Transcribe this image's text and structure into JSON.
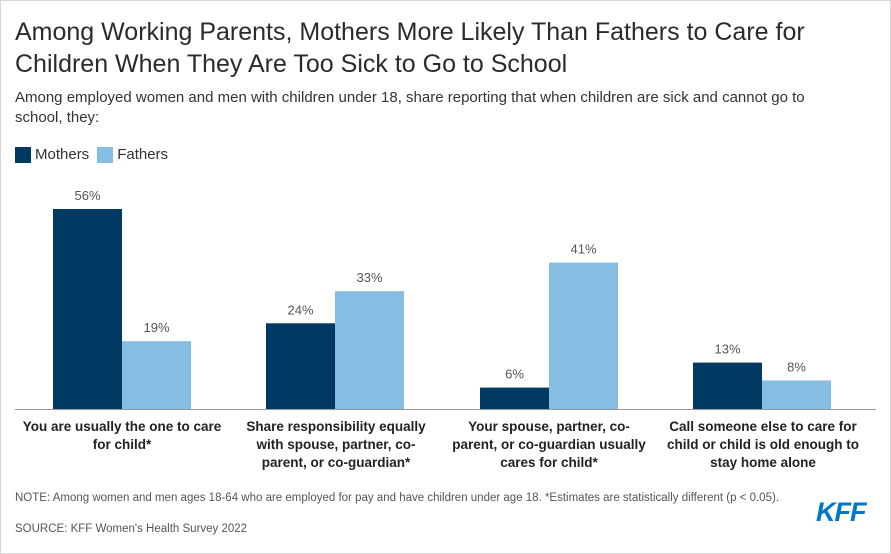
{
  "header": {
    "title": "Among Working Parents, Mothers More Likely Than Fathers to Care for Children When They Are Too Sick to Go to School",
    "subtitle": "Among employed women and men with children under 18, share reporting that when children are sick and cannot go to school, they:"
  },
  "legend": {
    "items": [
      {
        "label": "Mothers",
        "color": "#003a63"
      },
      {
        "label": "Fathers",
        "color": "#86bde3"
      }
    ]
  },
  "chart_data": {
    "type": "bar",
    "categories": [
      "You are usually the one to care for child*",
      "Share responsibility equally with spouse, partner, co-parent, or co-guardian*",
      "Your spouse, partner, co-parent, or co-guardian usually cares for child*",
      "Call someone else to care for child or child is old enough to stay home alone"
    ],
    "series": [
      {
        "name": "Mothers",
        "values": [
          56,
          24,
          6,
          13
        ],
        "labels": [
          "56%",
          "24%",
          "6%",
          "13%"
        ],
        "color": "#003a63"
      },
      {
        "name": "Fathers",
        "values": [
          19,
          33,
          41,
          8
        ],
        "labels": [
          "19%",
          "33%",
          "41%",
          "8%"
        ],
        "color": "#86bde3"
      }
    ],
    "ylim": [
      0,
      56
    ],
    "grid": false,
    "legend_position": "top-left"
  },
  "footer": {
    "note": "NOTE: Among women and men ages 18-64 who are employed for pay and have children under age 18. *Estimates are statistically different (p < 0.05).",
    "source": "SOURCE: KFF Women's Health Survey 2022",
    "logo_text": "KFF"
  }
}
